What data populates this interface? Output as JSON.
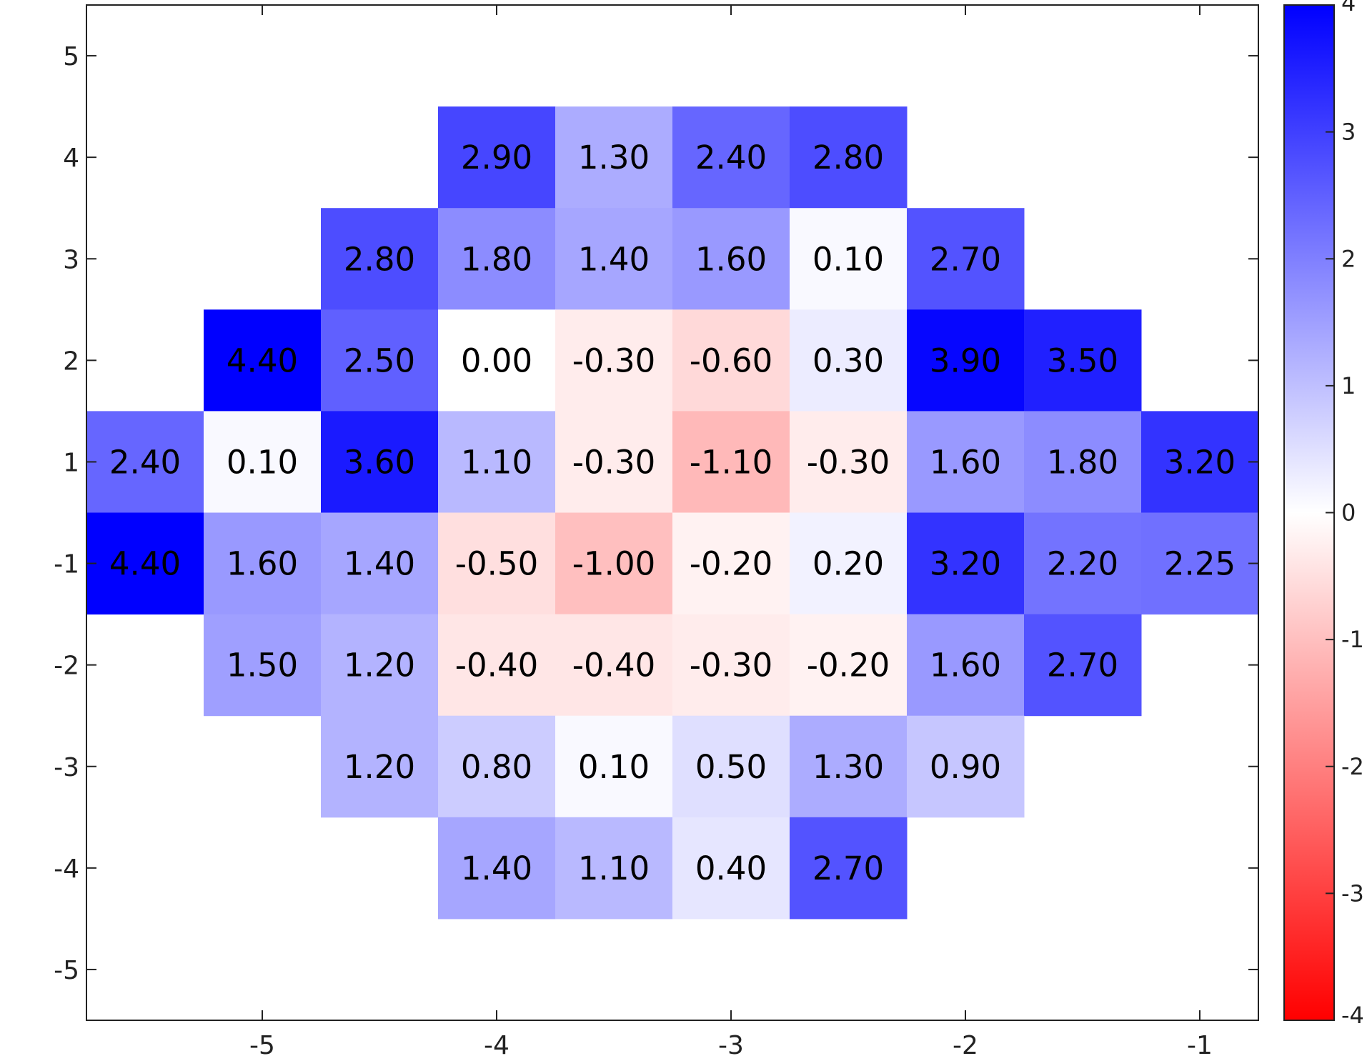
{
  "chart_data": {
    "type": "heatmap",
    "title": "",
    "xlabel": "",
    "ylabel": "",
    "x_ticks": [
      "-5",
      "-4",
      "-3",
      "-2",
      "-1"
    ],
    "y_ticks": [
      "5",
      "4",
      "3",
      "2",
      "1",
      "-1",
      "-2",
      "-3",
      "-4",
      "-5"
    ],
    "colorbar": {
      "ticks": [
        "4",
        "3",
        "2",
        "1",
        "0",
        "-1",
        "-2",
        "-3",
        "-4"
      ],
      "range": [
        -4,
        4
      ],
      "colors": {
        "high": "#0000ff",
        "mid": "#ffffff",
        "low": "#ff0000"
      }
    },
    "cells": [
      {
        "row": "4",
        "col": 3,
        "value": 2.9,
        "label": "2.90"
      },
      {
        "row": "4",
        "col": 4,
        "value": 1.3,
        "label": "1.30"
      },
      {
        "row": "4",
        "col": 5,
        "value": 2.4,
        "label": "2.40"
      },
      {
        "row": "4",
        "col": 6,
        "value": 2.8,
        "label": "2.80"
      },
      {
        "row": "3",
        "col": 2,
        "value": 2.8,
        "label": "2.80"
      },
      {
        "row": "3",
        "col": 3,
        "value": 1.8,
        "label": "1.80"
      },
      {
        "row": "3",
        "col": 4,
        "value": 1.4,
        "label": "1.40"
      },
      {
        "row": "3",
        "col": 5,
        "value": 1.6,
        "label": "1.60"
      },
      {
        "row": "3",
        "col": 6,
        "value": 0.1,
        "label": "0.10"
      },
      {
        "row": "3",
        "col": 7,
        "value": 2.7,
        "label": "2.70"
      },
      {
        "row": "2",
        "col": 1,
        "value": 4.4,
        "label": "4.40"
      },
      {
        "row": "2",
        "col": 2,
        "value": 2.5,
        "label": "2.50"
      },
      {
        "row": "2",
        "col": 3,
        "value": 0.0,
        "label": "0.00"
      },
      {
        "row": "2",
        "col": 4,
        "value": -0.3,
        "label": "-0.30"
      },
      {
        "row": "2",
        "col": 5,
        "value": -0.6,
        "label": "-0.60"
      },
      {
        "row": "2",
        "col": 6,
        "value": 0.3,
        "label": "0.30"
      },
      {
        "row": "2",
        "col": 7,
        "value": 3.9,
        "label": "3.90"
      },
      {
        "row": "2",
        "col": 8,
        "value": 3.5,
        "label": "3.50"
      },
      {
        "row": "1",
        "col": 0,
        "value": 2.4,
        "label": "2.40"
      },
      {
        "row": "1",
        "col": 1,
        "value": 0.1,
        "label": "0.10"
      },
      {
        "row": "1",
        "col": 2,
        "value": 3.6,
        "label": "3.60"
      },
      {
        "row": "1",
        "col": 3,
        "value": 1.1,
        "label": "1.10"
      },
      {
        "row": "1",
        "col": 4,
        "value": -0.3,
        "label": "-0.30"
      },
      {
        "row": "1",
        "col": 5,
        "value": -1.1,
        "label": "-1.10"
      },
      {
        "row": "1",
        "col": 6,
        "value": -0.3,
        "label": "-0.30"
      },
      {
        "row": "1",
        "col": 7,
        "value": 1.6,
        "label": "1.60"
      },
      {
        "row": "1",
        "col": 8,
        "value": 1.8,
        "label": "1.80"
      },
      {
        "row": "1",
        "col": 9,
        "value": 3.2,
        "label": "3.20"
      },
      {
        "row": "-1",
        "col": 0,
        "value": 4.4,
        "label": "4.40"
      },
      {
        "row": "-1",
        "col": 1,
        "value": 1.6,
        "label": "1.60"
      },
      {
        "row": "-1",
        "col": 2,
        "value": 1.4,
        "label": "1.40"
      },
      {
        "row": "-1",
        "col": 3,
        "value": -0.5,
        "label": "-0.50"
      },
      {
        "row": "-1",
        "col": 4,
        "value": -1.0,
        "label": "-1.00"
      },
      {
        "row": "-1",
        "col": 5,
        "value": -0.2,
        "label": "-0.20"
      },
      {
        "row": "-1",
        "col": 6,
        "value": 0.2,
        "label": "0.20"
      },
      {
        "row": "-1",
        "col": 7,
        "value": 3.2,
        "label": "3.20"
      },
      {
        "row": "-1",
        "col": 8,
        "value": 2.2,
        "label": "2.20"
      },
      {
        "row": "-1",
        "col": 9,
        "value": 2.25,
        "label": "2.25"
      },
      {
        "row": "-2",
        "col": 1,
        "value": 1.5,
        "label": "1.50"
      },
      {
        "row": "-2",
        "col": 2,
        "value": 1.2,
        "label": "1.20"
      },
      {
        "row": "-2",
        "col": 3,
        "value": -0.4,
        "label": "-0.40"
      },
      {
        "row": "-2",
        "col": 4,
        "value": -0.4,
        "label": "-0.40"
      },
      {
        "row": "-2",
        "col": 5,
        "value": -0.3,
        "label": "-0.30"
      },
      {
        "row": "-2",
        "col": 6,
        "value": -0.2,
        "label": "-0.20"
      },
      {
        "row": "-2",
        "col": 7,
        "value": 1.6,
        "label": "1.60"
      },
      {
        "row": "-2",
        "col": 8,
        "value": 2.7,
        "label": "2.70"
      },
      {
        "row": "-3",
        "col": 2,
        "value": 1.2,
        "label": "1.20"
      },
      {
        "row": "-3",
        "col": 3,
        "value": 0.8,
        "label": "0.80"
      },
      {
        "row": "-3",
        "col": 4,
        "value": 0.1,
        "label": "0.10"
      },
      {
        "row": "-3",
        "col": 5,
        "value": 0.5,
        "label": "0.50"
      },
      {
        "row": "-3",
        "col": 6,
        "value": 1.3,
        "label": "1.30"
      },
      {
        "row": "-3",
        "col": 7,
        "value": 0.9,
        "label": "0.90"
      },
      {
        "row": "-4",
        "col": 3,
        "value": 1.4,
        "label": "1.40"
      },
      {
        "row": "-4",
        "col": 4,
        "value": 1.1,
        "label": "1.10"
      },
      {
        "row": "-4",
        "col": 5,
        "value": 0.4,
        "label": "0.40"
      },
      {
        "row": "-4",
        "col": 6,
        "value": 2.7,
        "label": "2.70"
      }
    ]
  }
}
